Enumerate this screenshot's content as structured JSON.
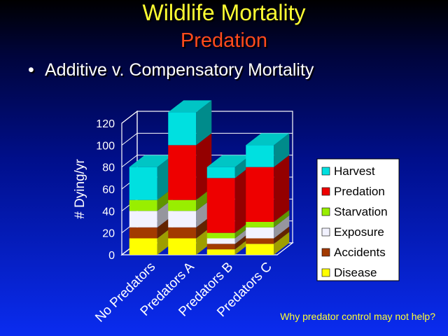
{
  "slide": {
    "title": "Wildlife Mortality",
    "subtitle": "Predation",
    "bullet": "Additive v. Compensatory Mortality",
    "footnote": "Why predator control may not help?"
  },
  "chart_data": {
    "type": "bar",
    "stacked": true,
    "three_d": true,
    "categories": [
      "No Predators",
      "Predators A",
      "Predators B",
      "Predators C"
    ],
    "series": [
      {
        "name": "Disease",
        "color": "#ffff00",
        "values": [
          15,
          15,
          5,
          10
        ]
      },
      {
        "name": "Accidents",
        "color": "#a23a00",
        "values": [
          10,
          10,
          5,
          5
        ]
      },
      {
        "name": "Exposure",
        "color": "#f2f2ff",
        "values": [
          15,
          15,
          5,
          10
        ]
      },
      {
        "name": "Starvation",
        "color": "#99ee00",
        "values": [
          10,
          10,
          5,
          5
        ]
      },
      {
        "name": "Predation",
        "color": "#ee0000",
        "values": [
          0,
          50,
          50,
          50
        ]
      },
      {
        "name": "Harvest",
        "color": "#00e0e0",
        "values": [
          30,
          30,
          10,
          20
        ]
      }
    ],
    "title": "",
    "xlabel": "",
    "ylabel": "# Dying/yr",
    "ylim": [
      0,
      120
    ],
    "yticks": [
      0,
      20,
      40,
      60,
      80,
      100,
      120
    ],
    "grid": true,
    "legend_position": "right"
  }
}
